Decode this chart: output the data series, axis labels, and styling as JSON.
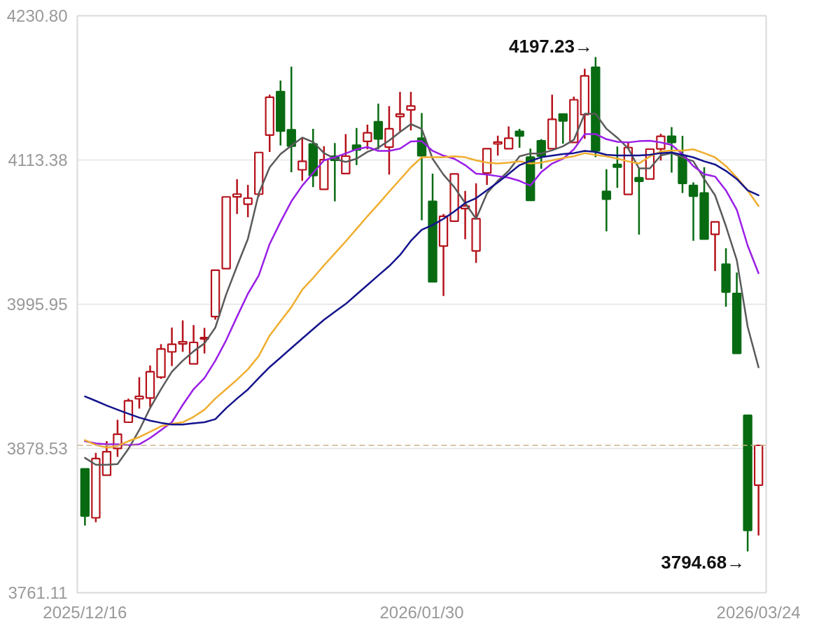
{
  "chart_data": {
    "type": "candlestick",
    "categories": [
      "2025/12/16",
      null,
      null,
      null,
      null,
      null,
      null,
      null,
      null,
      null,
      null,
      null,
      null,
      null,
      null,
      null,
      null,
      null,
      null,
      null,
      null,
      null,
      null,
      null,
      null,
      null,
      null,
      null,
      null,
      null,
      null,
      "2026/01/30",
      null,
      null,
      null,
      null,
      null,
      null,
      null,
      null,
      null,
      null,
      null,
      null,
      null,
      null,
      null,
      null,
      null,
      null,
      null,
      null,
      null,
      null,
      null,
      null,
      null,
      null,
      null,
      null,
      null,
      null,
      "2026/03/24"
    ],
    "ohlc": [
      [
        3862.0,
        3862.0,
        3815.9,
        3823.6
      ],
      [
        3822.1,
        3875.0,
        3818.5,
        3870.3
      ],
      [
        3856.8,
        3884.5,
        3856.8,
        3875.9
      ],
      [
        3878.6,
        3901.9,
        3871.7,
        3890.2
      ],
      [
        3899.9,
        3919.2,
        3899.9,
        3917.4
      ],
      [
        3919.0,
        3936.6,
        3911.0,
        3921.0
      ],
      [
        3919.7,
        3946.1,
        3912.2,
        3941.0
      ],
      [
        3936.6,
        3963.4,
        3935.3,
        3959.5
      ],
      [
        3957.2,
        3977.0,
        3945.6,
        3963.4
      ],
      [
        3963.7,
        3982.8,
        3957.2,
        3965.4
      ],
      [
        3947.4,
        3979.0,
        3947.4,
        3964.9
      ],
      [
        3967.7,
        3976.7,
        3955.9,
        3968.8
      ],
      [
        3985.9,
        4023.7,
        3983.4,
        4023.7
      ],
      [
        4025.0,
        4083.3,
        4025.0,
        4083.3
      ],
      [
        4083.4,
        4097.7,
        4069.4,
        4085.6
      ],
      [
        4077.4,
        4093.1,
        4066.8,
        4082.3
      ],
      [
        4085.6,
        4119.5,
        4083.6,
        4119.5
      ],
      [
        4133.7,
        4166.6,
        4120.0,
        4164.5
      ],
      [
        4169.1,
        4178.1,
        4125.2,
        4136.9
      ],
      [
        4138.0,
        4189.4,
        4103.4,
        4124.7
      ],
      [
        4105.4,
        4131.9,
        4096.4,
        4112.3
      ],
      [
        4126.4,
        4138.8,
        4091.3,
        4100.8
      ],
      [
        4089.5,
        4124.7,
        4089.5,
        4113.6
      ],
      [
        4116.4,
        4127.2,
        4079.7,
        4113.1
      ],
      [
        4102.3,
        4134.4,
        4102.3,
        4116.5
      ],
      [
        4125.5,
        4139.5,
        4109.2,
        4121.6
      ],
      [
        4128.5,
        4142.1,
        4122.1,
        4135.5
      ],
      [
        4144.5,
        4159.3,
        4122.1,
        4130.6
      ],
      [
        4123.9,
        4157.3,
        4101.5,
        4138.8
      ],
      [
        4148.8,
        4168.8,
        4136.7,
        4150.8
      ],
      [
        4154.2,
        4168.8,
        4137.5,
        4157.3
      ],
      [
        4131.1,
        4151.6,
        4064.3,
        4116.9
      ],
      [
        4079.7,
        4102.3,
        4014.2,
        4014.2
      ],
      [
        4043.3,
        4069.4,
        4002.7,
        4067.6
      ],
      [
        4063.6,
        4102.1,
        4063.6,
        4102.1
      ],
      [
        4073.8,
        4088.2,
        4048.9,
        4075.9
      ],
      [
        4039.4,
        4094.4,
        4029.6,
        4065.6
      ],
      [
        4102.8,
        4122.6,
        4093.1,
        4122.6
      ],
      [
        4126.5,
        4133.2,
        4116.9,
        4128.0
      ],
      [
        4122.6,
        4140.8,
        4122.6,
        4131.1
      ],
      [
        4136.7,
        4138.8,
        4123.4,
        4132.9
      ],
      [
        4115.7,
        4122.6,
        4080.5,
        4080.5
      ],
      [
        4129.0,
        4130.3,
        4106.2,
        4116.5
      ],
      [
        4122.6,
        4166.6,
        4122.6,
        4146.5
      ],
      [
        4150.8,
        4150.8,
        4126.7,
        4145.2
      ],
      [
        4127.7,
        4165.0,
        4127.7,
        4162.4
      ],
      [
        4150.3,
        4187.6,
        4130.6,
        4181.9
      ],
      [
        4188.9,
        4197.23,
        4115.7,
        4120.8
      ],
      [
        4087.8,
        4105.8,
        4055.3,
        4081.5
      ],
      [
        4109.7,
        4124.3,
        4090.7,
        4107.6
      ],
      [
        4085.4,
        4128.2,
        4085.4,
        4123.5
      ],
      [
        4098.9,
        4106.6,
        4052.6,
        4096.0
      ],
      [
        4097.9,
        4122.2,
        4097.9,
        4122.2
      ],
      [
        4122.4,
        4134.8,
        4112.9,
        4132.7
      ],
      [
        4132.7,
        4140.2,
        4103.1,
        4127.7
      ],
      [
        4116.9,
        4133.0,
        4086.5,
        4094.4
      ],
      [
        4092.6,
        4095.2,
        4047.6,
        4083.9
      ],
      [
        4086.5,
        4107.6,
        4049.0,
        4049.0
      ],
      [
        4052.9,
        4063.0,
        4023.1,
        4063.0
      ],
      [
        4028.6,
        4041.6,
        3994.0,
        4005.9
      ],
      [
        4004.8,
        4021.7,
        3956.0,
        3956.0
      ],
      [
        3905.5,
        3905.5,
        3794.68,
        3811.9
      ],
      [
        3848.7,
        3881.1,
        3807.7,
        3881.1
      ]
    ],
    "colors": [
      "#086b12",
      "#b5121b",
      "#b5121b",
      "#b5121b",
      "#b5121b",
      "#b5121b",
      "#b5121b",
      "#b5121b",
      "#b5121b",
      "#b5121b",
      "#b5121b",
      "#b5121b",
      "#b5121b",
      "#b5121b",
      "#b5121b",
      "#b5121b",
      "#b5121b",
      "#b5121b",
      "#086b12",
      "#086b12",
      "#b5121b",
      "#086b12",
      "#b5121b",
      "#086b12",
      "#b5121b",
      "#086b12",
      "#b5121b",
      "#086b12",
      "#b5121b",
      "#b5121b",
      "#b5121b",
      "#086b12",
      "#086b12",
      "#b5121b",
      "#b5121b",
      "#b5121b",
      "#b5121b",
      "#b5121b",
      "#b5121b",
      "#b5121b",
      "#086b12",
      "#086b12",
      "#086b12",
      "#b5121b",
      "#086b12",
      "#b5121b",
      "#b5121b",
      "#086b12",
      "#086b12",
      "#086b12",
      "#b5121b",
      "#086b12",
      "#b5121b",
      "#b5121b",
      "#086b12",
      "#086b12",
      "#086b12",
      "#086b12",
      "#b5121b",
      "#086b12",
      "#086b12",
      "#086b12",
      "#b5121b"
    ],
    "series": [
      {
        "type": "line",
        "color": "#5a5a5a",
        "values": [
          3870.9,
          3865.3,
          3865.3,
          3865.9,
          3878.2,
          3893.5,
          3911.5,
          3926.8,
          3941.0,
          3950.0,
          3957.7,
          3964.1,
          3977.0,
          4004.0,
          4027.0,
          4049.3,
          4086.2,
          4107.4,
          4118.2,
          4125.1,
          4131.6,
          4128.0,
          4119.0,
          4114.4,
          4111.8,
          4114.4,
          4120.0,
          4123.4,
          4129.2,
          4136.2,
          4142.6,
          4138.7,
          4114.4,
          4101.5,
          4091.2,
          4078.3,
          4065.5,
          4086.2,
          4096.4,
          4104.6,
          4116.4,
          4118.7,
          4118.7,
          4121.3,
          4124.6,
          4129.8,
          4151.0,
          4151.0,
          4138.8,
          4131.5,
          4122.9,
          4106.5,
          4106.5,
          4117.1,
          4119.0,
          4115.5,
          4112.3,
          4097.9,
          4084.6,
          4059.5,
          4031.8,
          3977.6,
          3944.6
        ]
      },
      {
        "type": "line",
        "color": "#9a1ee6",
        "values": [
          3884.5,
          3882.7,
          3881.9,
          3881.9,
          3881.2,
          3881.9,
          3887.1,
          3893.5,
          3899.9,
          3914.0,
          3926.8,
          3935.9,
          3950.0,
          3966.7,
          3985.9,
          4004.5,
          4019.4,
          4045.0,
          4063.0,
          4079.7,
          4092.5,
          4102.8,
          4113.1,
          4115.6,
          4118.7,
          4122.1,
          4123.9,
          4120.8,
          4120.8,
          4122.6,
          4128.5,
          4128.7,
          4120.8,
          4116.9,
          4114.4,
          4109.2,
          4102.3,
          4101.5,
          4100.2,
          4099.0,
          4096.4,
          4092.5,
          4103.6,
          4110.5,
          4114.4,
          4122.1,
          4134.4,
          4134.5,
          4130.3,
          4128.2,
          4127.7,
          4128.7,
          4129.0,
          4127.7,
          4125.6,
          4118.2,
          4108.4,
          4101.8,
          4099.9,
          4088.6,
          4072.8,
          4043.7,
          4021.2
        ]
      },
      {
        "type": "line",
        "color": "#f0ad2e",
        "values": [
          3885.3,
          3881.4,
          3879.3,
          3880.6,
          3884.5,
          3887.8,
          3892.2,
          3896.6,
          3898.6,
          3899.9,
          3904.3,
          3910.1,
          3919.2,
          3926.8,
          3934.6,
          3943.0,
          3953.8,
          3970.5,
          3982.1,
          3993.6,
          4007.8,
          4017.3,
          4027.6,
          4037.3,
          4047.1,
          4057.3,
          4067.6,
          4077.4,
          4087.6,
          4097.4,
          4107.4,
          4115.6,
          4115.6,
          4115.6,
          4116.4,
          4115.6,
          4113.1,
          4111.3,
          4110.5,
          4111.3,
          4112.3,
          4110.5,
          4111.3,
          4113.1,
          4114.9,
          4116.4,
          4119.0,
          4117.5,
          4116.3,
          4114.5,
          4112.3,
          4110.5,
          4116.3,
          4120.3,
          4121.1,
          4121.1,
          4122.1,
          4119.0,
          4115.5,
          4108.4,
          4099.1,
          4088.6,
          4075.9
        ]
      },
      {
        "type": "line",
        "color": "#14148c",
        "values": [
          3920.9,
          3917.3,
          3913.5,
          3910.1,
          3906.8,
          3903.7,
          3901.2,
          3899.4,
          3898.1,
          3898.1,
          3899.1,
          3899.9,
          3902.4,
          3911.4,
          3919.2,
          3926.6,
          3935.9,
          3944.8,
          3952.5,
          3960.3,
          3968.0,
          3975.7,
          3983.3,
          3989.8,
          3996.2,
          4003.9,
          4011.6,
          4019.4,
          4027.0,
          4036.0,
          4047.6,
          4056.6,
          4060.4,
          4065.5,
          4071.5,
          4078.4,
          4082.3,
          4088.7,
          4095.1,
          4102.1,
          4109.2,
          4112.6,
          4115.6,
          4116.9,
          4118.2,
          4119.0,
          4120.8,
          4119.9,
          4117.7,
          4117.1,
          4117.1,
          4117.1,
          4117.7,
          4119.0,
          4119.5,
          4117.7,
          4115.5,
          4112.3,
          4109.7,
          4104.5,
          4097.9,
          4088.6,
          4084.6
        ]
      }
    ],
    "ylim": [
      3761.11,
      4230.8
    ],
    "yticks": [
      3761.11,
      3878.53,
      3995.95,
      4113.38,
      {
        "value": 4230.8,
        "label": "4230.80"
      }
    ],
    "grid": "y",
    "annotations": [
      "4197.23→",
      "3794.68→"
    ],
    "ref_lines": [
      {
        "axis": "y",
        "value": 3881.1,
        "color": "#c8b48c",
        "line_style": "dashed"
      }
    ]
  }
}
